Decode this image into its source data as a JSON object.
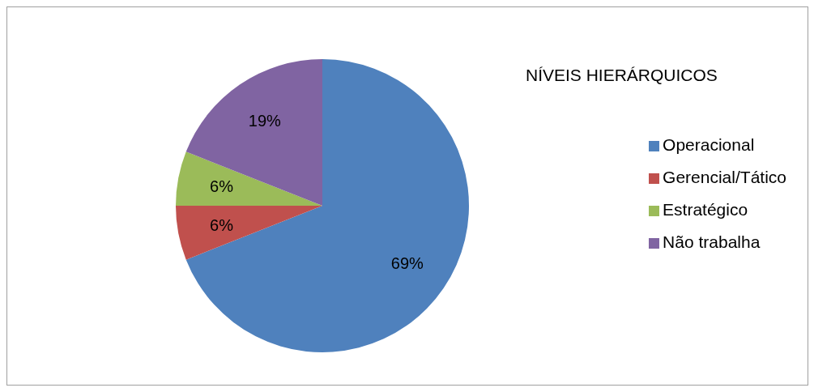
{
  "chart_data": {
    "type": "pie",
    "title": "NÍVEIS HIERÁRQUICOS",
    "categories": [
      "Operacional",
      "Gerencial/Tático",
      "Estratégico",
      "Não trabalha"
    ],
    "values": [
      69,
      6,
      6,
      19
    ],
    "colors": [
      "#4f81bd",
      "#c0504d",
      "#9bbb59",
      "#8064a2"
    ],
    "value_labels": [
      "69%",
      "6%",
      "6%",
      "19%"
    ],
    "legend": "right"
  }
}
